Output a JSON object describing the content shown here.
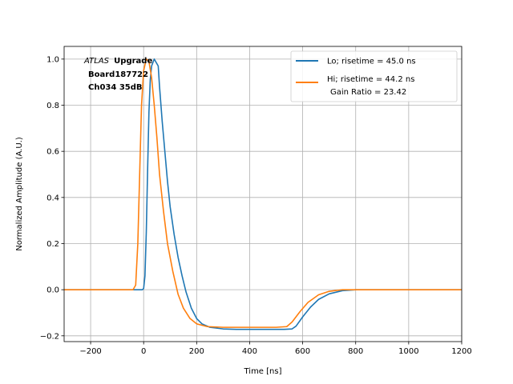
{
  "chart_data": {
    "type": "line",
    "xlabel": "Time [ns]",
    "ylabel": "Normalized Amplitude (A.U.)",
    "xlim": [
      -300,
      1200
    ],
    "ylim": [
      -0.225,
      1.055
    ],
    "xticks": [
      -200,
      0,
      200,
      400,
      600,
      800,
      1000,
      1200
    ],
    "yticks": [
      -0.2,
      0.0,
      0.2,
      0.4,
      0.6,
      0.8,
      1.0
    ],
    "xtick_labels": [
      "−200",
      "0",
      "200",
      "400",
      "600",
      "800",
      "1000",
      "1200"
    ],
    "ytick_labels": [
      "−0.2",
      "0.0",
      "0.2",
      "0.4",
      "0.6",
      "0.8",
      "1.0"
    ],
    "grid": true,
    "legend_position": "top-right",
    "annotation": {
      "italic": "ATLAS",
      "bold": "Upgrade",
      "line2": "Board187722",
      "line3": "Ch034 35dB"
    },
    "series": [
      {
        "name": "Lo; risetime = 45.0 ns",
        "color": "#1f77b4",
        "points": [
          [
            -300,
            0.0
          ],
          [
            -5,
            0.0
          ],
          [
            0,
            0.005
          ],
          [
            5,
            0.06
          ],
          [
            10,
            0.25
          ],
          [
            15,
            0.52
          ],
          [
            20,
            0.77
          ],
          [
            25,
            0.91
          ],
          [
            30,
            0.97
          ],
          [
            40,
            1.0
          ],
          [
            45,
            0.99
          ],
          [
            55,
            0.97
          ],
          [
            60,
            0.88
          ],
          [
            70,
            0.73
          ],
          [
            80,
            0.6
          ],
          [
            90,
            0.47
          ],
          [
            100,
            0.36
          ],
          [
            115,
            0.24
          ],
          [
            130,
            0.14
          ],
          [
            145,
            0.06
          ],
          [
            160,
            -0.01
          ],
          [
            180,
            -0.08
          ],
          [
            200,
            -0.125
          ],
          [
            220,
            -0.148
          ],
          [
            250,
            -0.163
          ],
          [
            300,
            -0.17
          ],
          [
            350,
            -0.172
          ],
          [
            450,
            -0.172
          ],
          [
            530,
            -0.172
          ],
          [
            560,
            -0.17
          ],
          [
            575,
            -0.158
          ],
          [
            600,
            -0.118
          ],
          [
            630,
            -0.075
          ],
          [
            660,
            -0.042
          ],
          [
            700,
            -0.018
          ],
          [
            750,
            -0.004
          ],
          [
            800,
            0.0
          ],
          [
            1200,
            0.0
          ]
        ]
      },
      {
        "name": "Hi; risetime = 44.2 ns",
        "extra_label": "Gain Ratio = 23.42",
        "color": "#ff7f0e",
        "points": [
          [
            -300,
            0.0
          ],
          [
            -40,
            0.0
          ],
          [
            -30,
            0.02
          ],
          [
            -22,
            0.2
          ],
          [
            -15,
            0.5
          ],
          [
            -8,
            0.8
          ],
          [
            0,
            0.95
          ],
          [
            10,
            1.0
          ],
          [
            20,
            0.99
          ],
          [
            30,
            0.92
          ],
          [
            40,
            0.8
          ],
          [
            50,
            0.66
          ],
          [
            60,
            0.5
          ],
          [
            75,
            0.34
          ],
          [
            90,
            0.2
          ],
          [
            110,
            0.08
          ],
          [
            130,
            -0.02
          ],
          [
            150,
            -0.08
          ],
          [
            175,
            -0.125
          ],
          [
            200,
            -0.148
          ],
          [
            240,
            -0.16
          ],
          [
            300,
            -0.163
          ],
          [
            400,
            -0.163
          ],
          [
            500,
            -0.163
          ],
          [
            540,
            -0.16
          ],
          [
            560,
            -0.14
          ],
          [
            590,
            -0.095
          ],
          [
            620,
            -0.055
          ],
          [
            660,
            -0.022
          ],
          [
            700,
            -0.007
          ],
          [
            750,
            0.0
          ],
          [
            1200,
            0.0
          ]
        ]
      }
    ]
  }
}
